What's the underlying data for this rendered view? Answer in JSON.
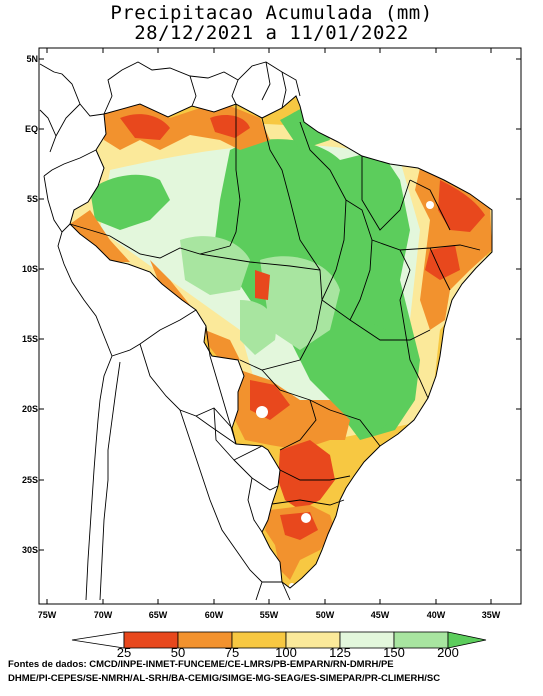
{
  "title": {
    "line1": "Precipitacao Acumulada (mm)",
    "line2": "28/12/2021 a 11/01/2022"
  },
  "axes": {
    "latitude_labels": [
      "5N",
      "EQ",
      "5S",
      "10S",
      "15S",
      "20S",
      "25S",
      "30S"
    ],
    "longitude_labels": [
      "75W",
      "70W",
      "65W",
      "60W",
      "55W",
      "50W",
      "45W",
      "40W",
      "35W"
    ]
  },
  "legend": {
    "unit": "mm",
    "tick_labels": [
      "25",
      "50",
      "75",
      "100",
      "125",
      "150",
      "200"
    ],
    "colors": [
      "#ffffff",
      "#e8481d",
      "#f2922e",
      "#f7c842",
      "#fbe99a",
      "#e3f7dc",
      "#a8e5a0",
      "#5ccd5c"
    ]
  },
  "credits": {
    "line1": "Fontes de dados: CMCD/INPE-INMET-FUNCEME/CE-LMRS/PB-EMPARN/RN-DMRH/PE",
    "line2": "DHME/PI-CEPES/SE-NMRH/AL-SRH/BA-CEMIG/SIMGE-MG-SEAG/ES-SIMEPAR/PR-CLIMERH/SC"
  }
}
